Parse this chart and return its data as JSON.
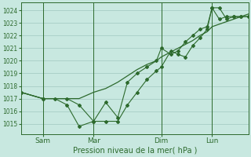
{
  "background_color": "#c8e8e0",
  "grid_color": "#a0c8c0",
  "line_color": "#2d6a2d",
  "marker_color": "#2d6a2d",
  "xlabel": "Pression niveau de la mer( hPa )",
  "ylim": [
    1014.2,
    1024.6
  ],
  "yticks": [
    1015,
    1016,
    1017,
    1018,
    1019,
    1020,
    1021,
    1022,
    1023,
    1024
  ],
  "day_labels": [
    "Sam",
    "Mar",
    "Dim",
    "Lun"
  ],
  "day_positions": [
    9,
    30,
    58,
    79
  ],
  "vline_positions": [
    9,
    30,
    58,
    79
  ],
  "xlim": [
    0,
    94
  ],
  "series1_x": [
    0,
    9,
    14,
    19,
    24,
    30,
    35,
    40,
    44,
    48,
    52,
    56,
    58,
    62,
    65,
    68,
    71,
    74,
    77,
    79,
    82,
    85,
    88,
    91,
    94
  ],
  "series1_y": [
    1017.5,
    1017.0,
    1017.0,
    1016.5,
    1014.8,
    1015.2,
    1015.2,
    1015.2,
    1016.5,
    1017.5,
    1018.5,
    1019.2,
    1019.5,
    1020.8,
    1020.5,
    1020.3,
    1021.2,
    1021.8,
    1022.5,
    1024.2,
    1024.2,
    1023.3,
    1023.5,
    1023.5,
    1023.5
  ],
  "series2_x": [
    0,
    9,
    14,
    19,
    24,
    30,
    35,
    40,
    44,
    48,
    52,
    56,
    58,
    62,
    65,
    68,
    71,
    74,
    77,
    79,
    82,
    85,
    88,
    91,
    94
  ],
  "series2_y": [
    1017.5,
    1017.0,
    1017.0,
    1017.0,
    1017.0,
    1017.5,
    1017.8,
    1018.3,
    1018.8,
    1019.3,
    1019.7,
    1020.0,
    1020.3,
    1020.7,
    1021.0,
    1021.3,
    1021.6,
    1022.0,
    1022.3,
    1022.7,
    1022.9,
    1023.1,
    1023.3,
    1023.5,
    1023.7
  ],
  "series3_x": [
    0,
    9,
    19,
    24,
    30,
    35,
    40,
    44,
    48,
    52,
    56,
    58,
    62,
    65,
    68,
    71,
    74,
    77,
    79,
    82,
    85,
    88,
    91,
    94
  ],
  "series3_y": [
    1017.5,
    1017.0,
    1017.0,
    1016.5,
    1015.2,
    1016.7,
    1015.5,
    1018.3,
    1019.0,
    1019.5,
    1020.0,
    1021.0,
    1020.5,
    1020.8,
    1021.5,
    1022.0,
    1022.5,
    1022.7,
    1024.2,
    1023.3,
    1023.5,
    1023.5,
    1023.5,
    1023.5
  ]
}
